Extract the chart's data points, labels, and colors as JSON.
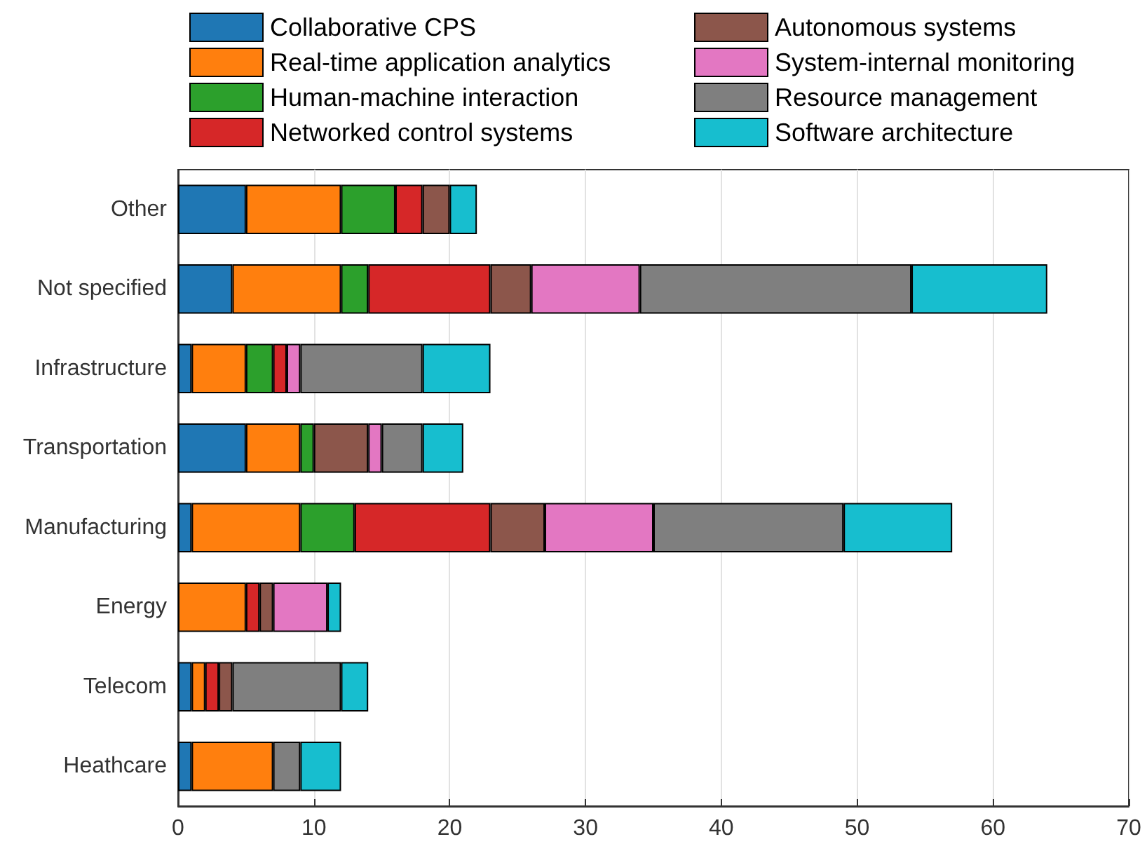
{
  "chart_data": {
    "type": "bar",
    "orientation": "horizontal",
    "stacked": true,
    "categories": [
      "Other",
      "Not specified",
      "Infrastructure",
      "Transportation",
      "Manufacturing",
      "Energy",
      "Telecom",
      "Heathcare"
    ],
    "series": [
      {
        "name": "Collaborative CPS",
        "color": "#1f77b4",
        "values": [
          5,
          4,
          1,
          5,
          1,
          0,
          1,
          1
        ]
      },
      {
        "name": "Real-time application analytics",
        "color": "#ff7f0e",
        "values": [
          7,
          8,
          4,
          4,
          8,
          5,
          1,
          6
        ]
      },
      {
        "name": "Human-machine interaction",
        "color": "#2ca02c",
        "values": [
          4,
          2,
          2,
          1,
          4,
          0,
          0,
          0
        ]
      },
      {
        "name": "Networked control systems",
        "color": "#d62728",
        "values": [
          2,
          9,
          1,
          0,
          10,
          1,
          1,
          0
        ]
      },
      {
        "name": "Autonomous systems",
        "color": "#8c564b",
        "values": [
          2,
          3,
          0,
          4,
          4,
          1,
          1,
          0
        ]
      },
      {
        "name": "System-internal monitoring",
        "color": "#e377c2",
        "values": [
          0,
          8,
          1,
          1,
          8,
          4,
          0,
          0
        ]
      },
      {
        "name": "Resource management",
        "color": "#7f7f7f",
        "values": [
          0,
          20,
          9,
          3,
          14,
          0,
          8,
          2
        ]
      },
      {
        "name": "Software architecture",
        "color": "#17becf",
        "values": [
          2,
          10,
          5,
          3,
          8,
          1,
          2,
          3
        ]
      }
    ],
    "xlim": [
      0,
      70
    ],
    "xticks": [
      0,
      10,
      20,
      30,
      40,
      50,
      60,
      70
    ],
    "grid": "x",
    "legend": "top"
  }
}
